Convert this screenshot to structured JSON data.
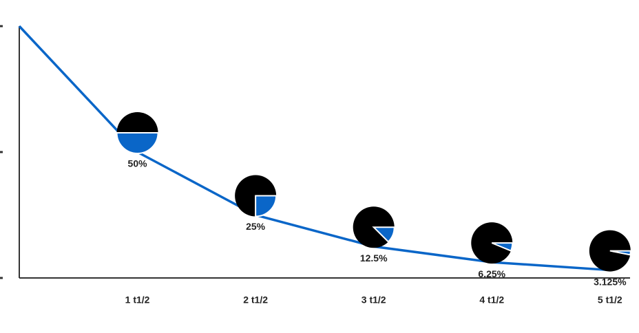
{
  "chart_data": {
    "type": "line",
    "x": [
      0,
      1,
      2,
      3,
      4,
      5
    ],
    "series": [
      {
        "color": "#0a66c8",
        "values": [
          100,
          50,
          25,
          12.5,
          6.25,
          3.125
        ],
        "value_labels": [
          null,
          "50%",
          "25%",
          "12.5%",
          "6.25%",
          "3.125%"
        ]
      }
    ],
    "pie_color": "#000000",
    "xlim": [
      0,
      5.17
    ],
    "xticks": [
      {
        "value": 1,
        "label": "1 t1/2"
      },
      {
        "value": 2,
        "label": "2 t1/2"
      },
      {
        "value": 3,
        "label": "3 t1/2"
      },
      {
        "value": 4,
        "label": "4 t1/2"
      },
      {
        "value": 5,
        "label": "5 t1/2"
      }
    ],
    "ylim": [
      0,
      100
    ],
    "yticks": [
      0,
      50,
      100
    ]
  }
}
